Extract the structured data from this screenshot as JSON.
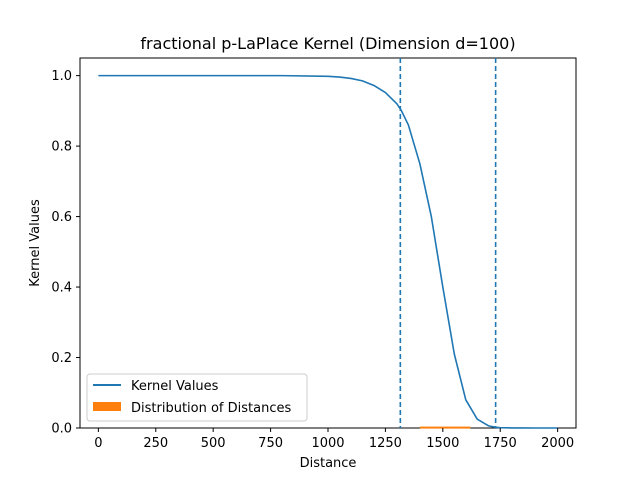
{
  "chart_data": {
    "type": "line",
    "title": "fractional p-LaPlace Kernel (Dimension d=100)",
    "xlabel": "Distance",
    "ylabel": "Kernel Values",
    "xlim": [
      -80,
      2080
    ],
    "ylim": [
      0,
      1.05
    ],
    "xticks": [
      0,
      250,
      500,
      750,
      1000,
      1250,
      1500,
      1750,
      2000
    ],
    "xtick_labels": [
      "0",
      "250",
      "500",
      "750",
      "1000",
      "1250",
      "1500",
      "1750",
      "2000"
    ],
    "yticks": [
      0,
      0.2,
      0.4,
      0.6,
      0.8,
      1.0
    ],
    "ytick_labels": [
      "0.0",
      "0.2",
      "0.4",
      "0.6",
      "0.8",
      "1.0"
    ],
    "grid": false,
    "legend_position": "lower-left",
    "series": [
      {
        "name": "Kernel Values",
        "color": "#1f77b4",
        "x": [
          0,
          200,
          400,
          600,
          800,
          1000,
          1050,
          1100,
          1150,
          1200,
          1250,
          1300,
          1320,
          1350,
          1400,
          1450,
          1500,
          1550,
          1600,
          1650,
          1700,
          1730,
          1750,
          1800,
          1850,
          1900,
          2000
        ],
        "y": [
          1.0,
          1.0,
          1.0,
          1.0,
          1.0,
          0.998,
          0.996,
          0.992,
          0.985,
          0.972,
          0.952,
          0.92,
          0.9,
          0.86,
          0.75,
          0.6,
          0.4,
          0.21,
          0.08,
          0.025,
          0.006,
          0.002,
          0.001,
          0.0003,
          0.0001,
          0.0,
          0.0
        ]
      }
    ],
    "histogram": {
      "name": "Distribution of Distances",
      "color": "#ff7f0e",
      "range": [
        1400,
        1620
      ],
      "height": 0.004
    },
    "vlines": {
      "x": [
        1315,
        1730
      ],
      "color": "#1f77b4",
      "style": "dashed"
    }
  }
}
